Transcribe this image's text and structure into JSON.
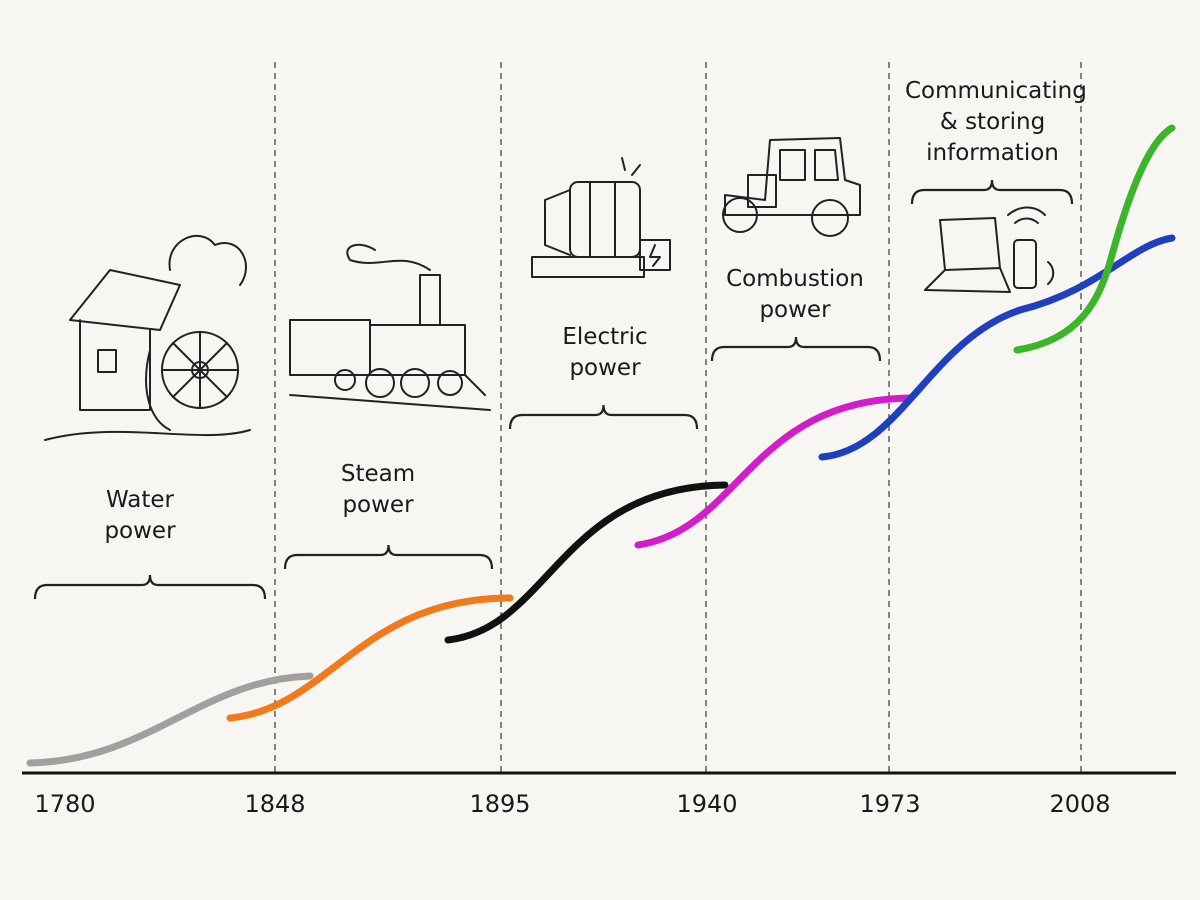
{
  "timeline": {
    "years": [
      "1780",
      "1848",
      "1895",
      "1940",
      "1973",
      "2008"
    ],
    "eras": [
      {
        "label": "Water power"
      },
      {
        "label": "Steam power"
      },
      {
        "label": "Electric power"
      },
      {
        "label": "Combustion power"
      },
      {
        "label": "Communicating & storing information"
      }
    ]
  }
}
